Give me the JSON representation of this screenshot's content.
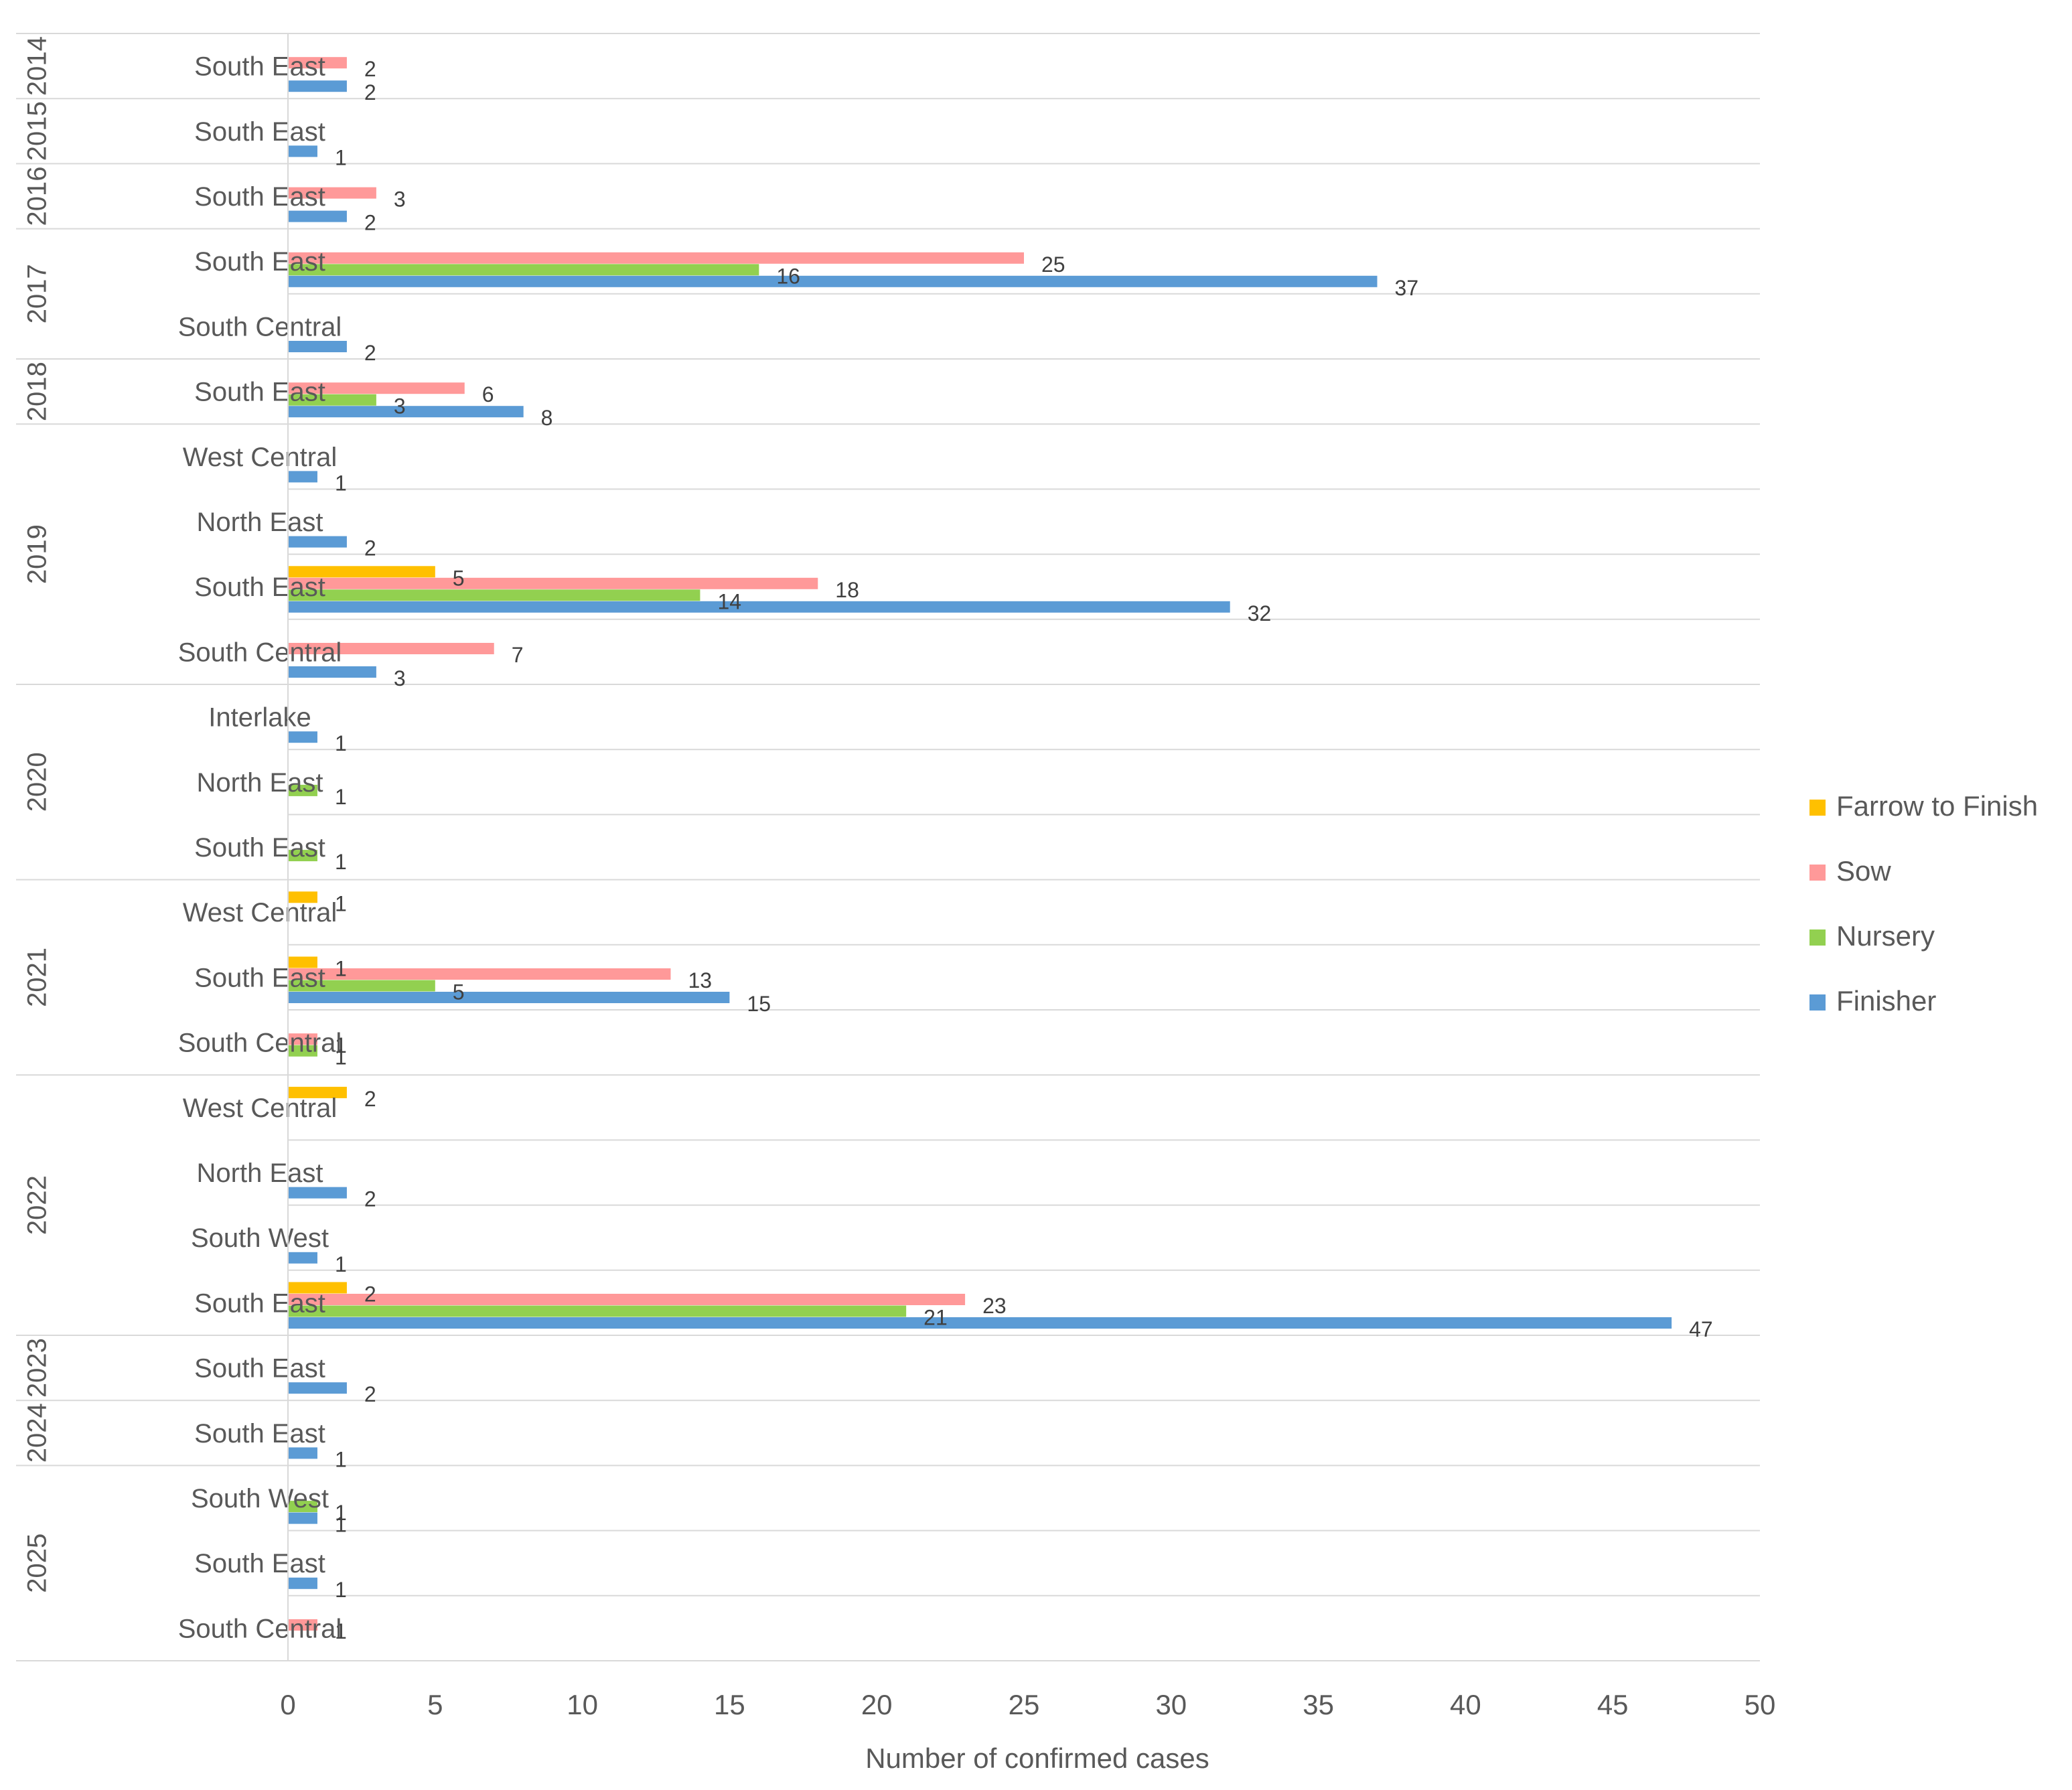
{
  "chart_data": {
    "type": "bar",
    "orientation": "horizontal",
    "title": "",
    "xlabel": "Number of confirmed cases",
    "ylabel": "",
    "xlim": [
      0,
      50
    ],
    "x_ticks": [
      0,
      5,
      10,
      15,
      20,
      25,
      30,
      35,
      40,
      45,
      50
    ],
    "grid": false,
    "legend_position": "right",
    "series": [
      {
        "name": "Farrow to Finish",
        "color": "#FFC000"
      },
      {
        "name": "Sow",
        "color": "#FF9999"
      },
      {
        "name": "Nursery",
        "color": "#92D050"
      },
      {
        "name": "Finisher",
        "color": "#5B9BD5"
      }
    ],
    "groups": [
      {
        "year": "2014",
        "categories": [
          {
            "region": "South East",
            "values": {
              "Sow": 2,
              "Finisher": 2
            }
          }
        ]
      },
      {
        "year": "2015",
        "categories": [
          {
            "region": "South East",
            "values": {
              "Finisher": 1
            }
          }
        ]
      },
      {
        "year": "2016",
        "categories": [
          {
            "region": "South East",
            "values": {
              "Sow": 3,
              "Finisher": 2
            }
          }
        ]
      },
      {
        "year": "2017",
        "categories": [
          {
            "region": "South East",
            "values": {
              "Sow": 25,
              "Nursery": 16,
              "Finisher": 37
            }
          },
          {
            "region": "South Central",
            "values": {
              "Finisher": 2
            }
          }
        ]
      },
      {
        "year": "2018",
        "categories": [
          {
            "region": "South East",
            "values": {
              "Sow": 6,
              "Nursery": 3,
              "Finisher": 8
            }
          }
        ]
      },
      {
        "year": "2019",
        "categories": [
          {
            "region": "West Central",
            "values": {
              "Finisher": 1
            }
          },
          {
            "region": "North East",
            "values": {
              "Finisher": 2
            }
          },
          {
            "region": "South East",
            "values": {
              "Farrow to Finish": 5,
              "Sow": 18,
              "Nursery": 14,
              "Finisher": 32
            }
          },
          {
            "region": "South Central",
            "values": {
              "Sow": 7,
              "Finisher": 3
            }
          }
        ]
      },
      {
        "year": "2020",
        "categories": [
          {
            "region": "Interlake",
            "values": {
              "Finisher": 1
            }
          },
          {
            "region": "North East",
            "values": {
              "Nursery": 1
            }
          },
          {
            "region": "South East",
            "values": {
              "Nursery": 1
            }
          }
        ]
      },
      {
        "year": "2021",
        "categories": [
          {
            "region": "West Central",
            "values": {
              "Farrow to Finish": 1
            }
          },
          {
            "region": "South East",
            "values": {
              "Farrow to Finish": 1,
              "Sow": 13,
              "Nursery": 5,
              "Finisher": 15
            }
          },
          {
            "region": "South Central",
            "values": {
              "Sow": 1,
              "Nursery": 1
            }
          }
        ]
      },
      {
        "year": "2022",
        "categories": [
          {
            "region": "West Central",
            "values": {
              "Farrow to Finish": 2
            }
          },
          {
            "region": "North East",
            "values": {
              "Finisher": 2
            }
          },
          {
            "region": "South West",
            "values": {
              "Finisher": 1
            }
          },
          {
            "region": "South East",
            "values": {
              "Farrow to Finish": 2,
              "Sow": 23,
              "Nursery": 21,
              "Finisher": 47
            }
          }
        ]
      },
      {
        "year": "2023",
        "categories": [
          {
            "region": "South East",
            "values": {
              "Finisher": 2
            }
          }
        ]
      },
      {
        "year": "2024",
        "categories": [
          {
            "region": "South East",
            "values": {
              "Finisher": 1
            }
          }
        ]
      },
      {
        "year": "2025",
        "categories": [
          {
            "region": "South West",
            "values": {
              "Nursery": 1,
              "Finisher": 1
            }
          },
          {
            "region": "South East",
            "values": {
              "Finisher": 1
            }
          },
          {
            "region": "South Central",
            "values": {
              "Sow": 1
            }
          }
        ]
      }
    ]
  }
}
